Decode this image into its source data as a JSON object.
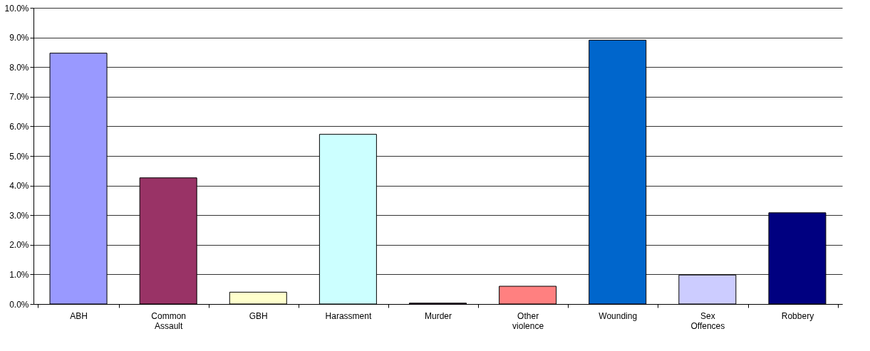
{
  "chart_data": {
    "type": "bar",
    "categories": [
      "ABH",
      "Common Assault",
      "GBH",
      "Harassment",
      "Murder",
      "Other violence",
      "Wounding",
      "Sex Offences",
      "Robbery"
    ],
    "values": [
      8.47,
      4.26,
      0.4,
      5.73,
      0.03,
      0.6,
      8.91,
      0.98,
      3.08
    ],
    "colors": [
      "#9999ff",
      "#993366",
      "#ffffcc",
      "#ccffff",
      "#660066",
      "#ff8080",
      "#0066cc",
      "#ccccff",
      "#000080"
    ],
    "ylim": [
      0,
      10
    ],
    "yticks": [
      {
        "value": 0,
        "label": "0.0%"
      },
      {
        "value": 1,
        "label": "1.0%"
      },
      {
        "value": 2,
        "label": "2.0%"
      },
      {
        "value": 3,
        "label": "3.0%"
      },
      {
        "value": 4,
        "label": "4.0%"
      },
      {
        "value": 5,
        "label": "5.0%"
      },
      {
        "value": 6,
        "label": "6.0%"
      },
      {
        "value": 7,
        "label": "7.0%"
      },
      {
        "value": 8,
        "label": "8.0%"
      },
      {
        "value": 9,
        "label": "9.0%"
      },
      {
        "value": 10,
        "label": "10.0%"
      }
    ],
    "grid": "y",
    "legend": false
  }
}
